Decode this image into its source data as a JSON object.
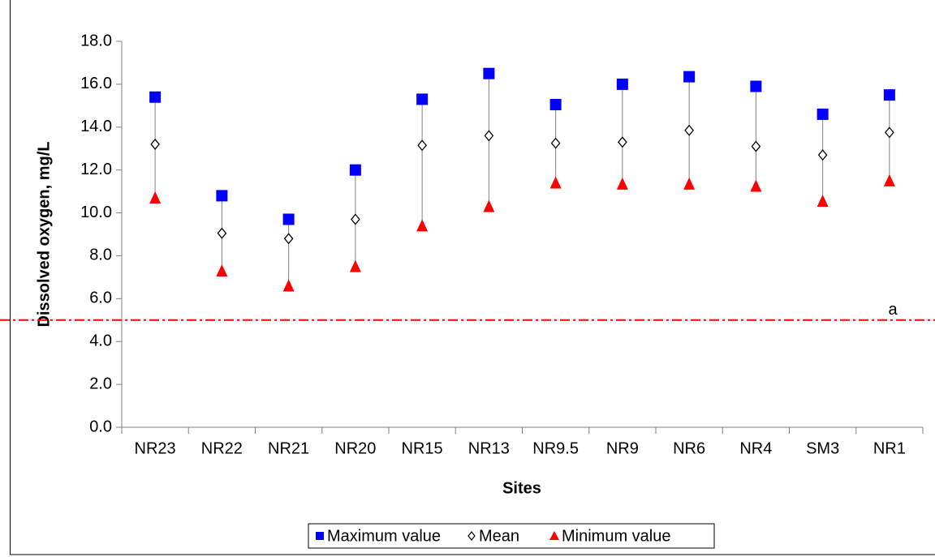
{
  "chart_data": {
    "type": "hilo",
    "y_label": "Dissolved oxygen, mg/L",
    "x_label": "Sites",
    "categories": [
      "NR23",
      "NR22",
      "NR21",
      "NR20",
      "NR15",
      "NR13",
      "NR9.5",
      "NR9",
      "NR6",
      "NR4",
      "SM3",
      "NR1"
    ],
    "series": [
      {
        "name": "Maximum value",
        "color": "#0000ff",
        "marker": "square",
        "values": [
          15.4,
          10.8,
          9.7,
          12.0,
          15.3,
          16.5,
          15.05,
          16.0,
          16.35,
          15.9,
          14.6,
          15.5
        ]
      },
      {
        "name": "Mean",
        "color": "#ffffff",
        "marker": "diamond",
        "values": [
          13.2,
          9.05,
          8.8,
          9.7,
          13.15,
          13.6,
          13.25,
          13.3,
          13.85,
          13.1,
          12.7,
          13.75
        ]
      },
      {
        "name": "Minimum value",
        "color": "#ff0000",
        "marker": "triangle",
        "values": [
          10.7,
          7.3,
          6.6,
          7.5,
          9.4,
          10.3,
          11.4,
          11.35,
          11.35,
          11.25,
          10.55,
          11.5
        ]
      }
    ],
    "reference_line": {
      "value": 5.0,
      "label": "a",
      "color": "#ff0000"
    },
    "ylim": [
      0,
      18
    ],
    "yticks": [
      {
        "value": 0,
        "label": "0.0"
      },
      {
        "value": 2,
        "label": "2.0"
      },
      {
        "value": 4,
        "label": "4.0"
      },
      {
        "value": 6,
        "label": "6.0"
      },
      {
        "value": 8,
        "label": "8.0"
      },
      {
        "value": 10,
        "label": "10.0"
      },
      {
        "value": 12,
        "label": "12.0"
      },
      {
        "value": 14,
        "label": "14.0"
      },
      {
        "value": 16,
        "label": "16.0"
      },
      {
        "value": 18,
        "label": "18.0"
      }
    ],
    "grid": false,
    "legend": "bottom"
  }
}
